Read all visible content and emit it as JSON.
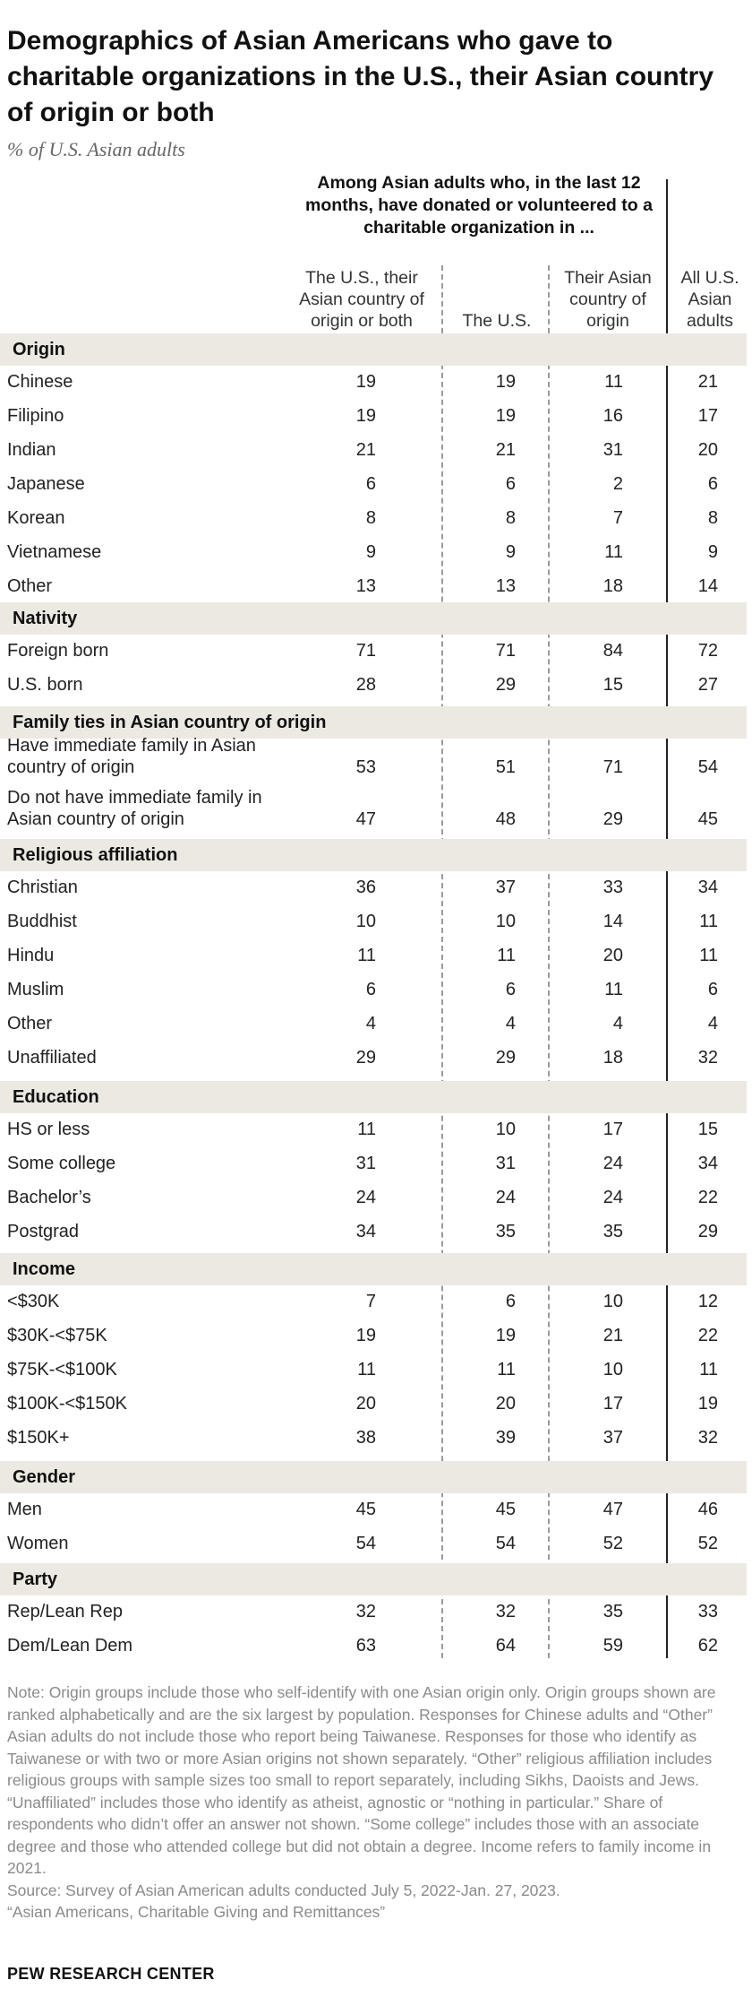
{
  "header": {
    "title": "Demographics of Asian Americans who gave to charitable organizations in the U.S., their Asian country of origin or both",
    "subtitle": "% of U.S. Asian adults",
    "group_head": "Among Asian adults who, in the last 12 months, have donated or volunteered to a charitable organization in ...",
    "col1": "The U.S., their Asian country of origin or both",
    "col2": "The U.S.",
    "col3": "Their Asian country of origin",
    "col4": "All U.S. Asian adults"
  },
  "chart_data": {
    "type": "table",
    "columns": [
      "The U.S., their Asian country of origin or both",
      "The U.S.",
      "Their Asian country of origin",
      "All U.S. Asian adults"
    ],
    "sections": [
      {
        "name": "Origin",
        "rows": [
          {
            "label": "Chinese",
            "values": [
              19,
              19,
              11,
              21
            ]
          },
          {
            "label": "Filipino",
            "values": [
              19,
              19,
              16,
              17
            ]
          },
          {
            "label": "Indian",
            "values": [
              21,
              21,
              31,
              20
            ]
          },
          {
            "label": "Japanese",
            "values": [
              6,
              6,
              2,
              6
            ]
          },
          {
            "label": "Korean",
            "values": [
              8,
              8,
              7,
              8
            ]
          },
          {
            "label": "Vietnamese",
            "values": [
              9,
              9,
              11,
              9
            ]
          },
          {
            "label": "Other",
            "values": [
              13,
              13,
              18,
              14
            ]
          }
        ]
      },
      {
        "name": "Nativity",
        "rows": [
          {
            "label": "Foreign born",
            "values": [
              71,
              71,
              84,
              72
            ]
          },
          {
            "label": "U.S. born",
            "values": [
              28,
              29,
              15,
              27
            ]
          }
        ]
      },
      {
        "name": "Family ties in Asian country of origin",
        "rows": [
          {
            "label": "Have immediate family in Asian country of origin",
            "values": [
              53,
              51,
              71,
              54
            ]
          },
          {
            "label": "Do not have immediate family in Asian country of origin",
            "values": [
              47,
              48,
              29,
              45
            ]
          }
        ]
      },
      {
        "name": "Religious affiliation",
        "rows": [
          {
            "label": "Christian",
            "values": [
              36,
              37,
              33,
              34
            ]
          },
          {
            "label": "Buddhist",
            "values": [
              10,
              10,
              14,
              11
            ]
          },
          {
            "label": "Hindu",
            "values": [
              11,
              11,
              20,
              11
            ]
          },
          {
            "label": "Muslim",
            "values": [
              6,
              6,
              11,
              6
            ]
          },
          {
            "label": "Other",
            "values": [
              4,
              4,
              4,
              4
            ]
          },
          {
            "label": "Unaffiliated",
            "values": [
              29,
              29,
              18,
              32
            ]
          }
        ]
      },
      {
        "name": "Education",
        "rows": [
          {
            "label": "HS or less",
            "values": [
              11,
              10,
              17,
              15
            ]
          },
          {
            "label": "Some college",
            "values": [
              31,
              31,
              24,
              34
            ]
          },
          {
            "label": "Bachelor’s",
            "values": [
              24,
              24,
              24,
              22
            ]
          },
          {
            "label": "Postgrad",
            "values": [
              34,
              35,
              35,
              29
            ]
          }
        ]
      },
      {
        "name": "Income",
        "rows": [
          {
            "label": "<$30K",
            "values": [
              7,
              6,
              10,
              12
            ]
          },
          {
            "label": "$30K-<$75K",
            "values": [
              19,
              19,
              21,
              22
            ]
          },
          {
            "label": "$75K-<$100K",
            "values": [
              11,
              11,
              10,
              11
            ]
          },
          {
            "label": "$100K-<$150K",
            "values": [
              20,
              20,
              17,
              19
            ]
          },
          {
            "label": "$150K+",
            "values": [
              38,
              39,
              37,
              32
            ]
          }
        ]
      },
      {
        "name": "Gender",
        "rows": [
          {
            "label": "Men",
            "values": [
              45,
              45,
              47,
              46
            ]
          },
          {
            "label": "Women",
            "values": [
              54,
              54,
              52,
              52
            ]
          }
        ]
      },
      {
        "name": "Party",
        "rows": [
          {
            "label": "Rep/Lean Rep",
            "values": [
              32,
              32,
              35,
              33
            ]
          },
          {
            "label": "Dem/Lean Dem",
            "values": [
              63,
              64,
              59,
              62
            ]
          }
        ]
      }
    ]
  },
  "footer": {
    "note": "Note: Origin groups include those who self-identify with one Asian origin only. Origin groups shown are ranked alphabetically and are the six largest by population. Responses for Chinese adults and “Other” Asian adults do not include those who report being Taiwanese. Responses for those who identify as Taiwanese or with two or more Asian origins not shown separately. “Other” religious affiliation includes religious groups with sample sizes too small to report separately, including Sikhs, Daoists and Jews. “Unaffiliated” includes those who identify as atheist, agnostic or “nothing in particular.” Share of respondents who didn’t offer an answer not shown. “Some college” includes those with an associate degree and those who attended college but did not obtain a degree. Income refers to family income in 2021.",
    "source": "Source: Survey of Asian American adults conducted July 5, 2022-Jan. 27, 2023.",
    "report": "“Asian Americans, Charitable Giving and Remittances”",
    "logo": "PEW RESEARCH CENTER"
  }
}
